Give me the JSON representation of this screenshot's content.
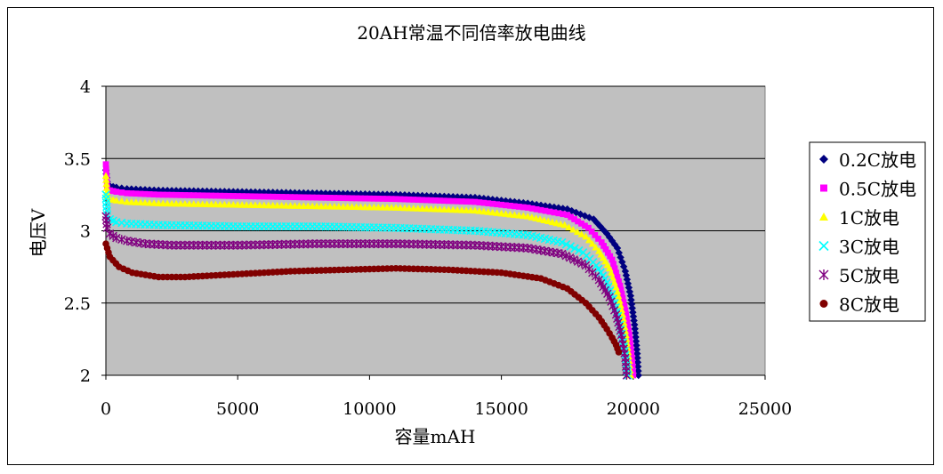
{
  "chart_data": {
    "type": "scatter",
    "title": "20AH常温不同倍率放电曲线",
    "xlabel": "容量mAH",
    "ylabel": "电压V",
    "xlim": [
      0,
      25000
    ],
    "ylim": [
      2,
      4
    ],
    "xticks": [
      "0",
      "5000",
      "10000",
      "15000",
      "20000",
      "25000"
    ],
    "yticks": [
      "2",
      "2.5",
      "3",
      "3.5",
      "4"
    ],
    "grid": "horizontal",
    "legend_position": "right",
    "plot_background": "#c0c0c0",
    "series": [
      {
        "name": "0.2C放电",
        "color": "#000080",
        "marker": "diamond",
        "x": [
          0,
          50,
          150,
          400,
          800,
          2000,
          5000,
          8000,
          11000,
          14000,
          16000,
          17500,
          18500,
          19000,
          19400,
          19700,
          19900,
          20050,
          20150,
          20200
        ],
        "y": [
          3.42,
          3.34,
          3.31,
          3.3,
          3.29,
          3.28,
          3.27,
          3.26,
          3.25,
          3.23,
          3.19,
          3.15,
          3.08,
          2.98,
          2.88,
          2.72,
          2.55,
          2.35,
          2.15,
          2.0
        ]
      },
      {
        "name": "0.5C放电",
        "color": "#ff00ff",
        "marker": "square",
        "x": [
          0,
          50,
          150,
          400,
          800,
          2000,
          5000,
          8000,
          11000,
          14000,
          16000,
          17500,
          18300,
          18800,
          19200,
          19500,
          19700,
          19850,
          19950,
          20000
        ],
        "y": [
          3.46,
          3.3,
          3.28,
          3.27,
          3.26,
          3.25,
          3.24,
          3.23,
          3.22,
          3.2,
          3.16,
          3.11,
          3.02,
          2.92,
          2.8,
          2.62,
          2.45,
          2.28,
          2.12,
          2.0
        ]
      },
      {
        "name": "1C放电",
        "color": "#ffff00",
        "marker": "triangle",
        "x": [
          0,
          50,
          150,
          400,
          800,
          2000,
          5000,
          8000,
          11000,
          14000,
          16000,
          17400,
          18200,
          18700,
          19100,
          19400,
          19600,
          19750,
          19850,
          19900
        ],
        "y": [
          3.38,
          3.24,
          3.22,
          3.21,
          3.2,
          3.19,
          3.18,
          3.17,
          3.16,
          3.14,
          3.1,
          3.04,
          2.96,
          2.86,
          2.74,
          2.58,
          2.42,
          2.25,
          2.1,
          2.0
        ]
      },
      {
        "name": "3C放电",
        "color": "#00ffff",
        "marker": "x",
        "x": [
          0,
          50,
          150,
          400,
          800,
          2000,
          5000,
          8000,
          11000,
          14000,
          16000,
          17300,
          18100,
          18600,
          19000,
          19300,
          19500,
          19650,
          19750,
          19800
        ],
        "y": [
          3.25,
          3.11,
          3.08,
          3.06,
          3.05,
          3.04,
          3.03,
          3.03,
          3.02,
          3.0,
          2.97,
          2.92,
          2.85,
          2.76,
          2.64,
          2.5,
          2.35,
          2.2,
          2.08,
          2.0
        ]
      },
      {
        "name": "5C放电",
        "color": "#800080",
        "marker": "asterisk",
        "x": [
          0,
          50,
          150,
          400,
          800,
          1500,
          2500,
          5000,
          8000,
          11000,
          14000,
          16000,
          17300,
          18200,
          18700,
          19100,
          19350,
          19550,
          19700,
          19750
        ],
        "y": [
          3.1,
          3.02,
          2.98,
          2.95,
          2.93,
          2.91,
          2.9,
          2.9,
          2.91,
          2.91,
          2.9,
          2.88,
          2.84,
          2.76,
          2.66,
          2.54,
          2.42,
          2.28,
          2.12,
          2.0
        ]
      },
      {
        "name": "8C放电",
        "color": "#800000",
        "marker": "circle",
        "x": [
          0,
          150,
          500,
          1000,
          2000,
          3000,
          5000,
          7000,
          9000,
          11000,
          13000,
          15000,
          16500,
          17500,
          18200,
          18700,
          19000,
          19200,
          19350,
          19450
        ],
        "y": [
          2.91,
          2.82,
          2.75,
          2.71,
          2.68,
          2.68,
          2.7,
          2.72,
          2.73,
          2.74,
          2.73,
          2.71,
          2.67,
          2.6,
          2.5,
          2.4,
          2.32,
          2.26,
          2.21,
          2.16
        ]
      }
    ]
  }
}
